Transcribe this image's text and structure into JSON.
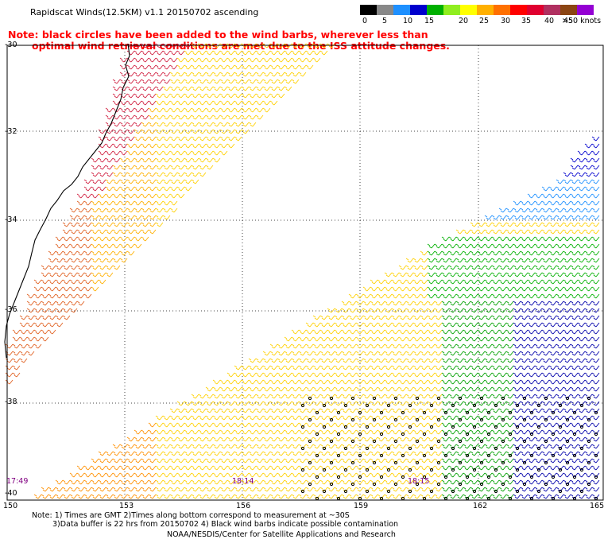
{
  "header": {
    "title": "Rapidscat Winds(12.5KM) v1.1 20150702 ascending",
    "note_line1": "Note: black circles have been added to the wind barbs, wherever less than",
    "note_line2": "optimal wind retrieval conditions are met due to the ISS attitude changes."
  },
  "legend": {
    "labels": [
      "0",
      "5",
      "10",
      "15",
      "20",
      "25",
      "30",
      "35",
      "40",
      "45",
      ">50 knots"
    ],
    "colors": [
      "#000000",
      "#888888",
      "#1e90ff",
      "#0000cd",
      "#00b000",
      "#90ee20",
      "#ffff00",
      "#ffb000",
      "#ff7000",
      "#ff0000",
      "#e00030",
      "#b03060",
      "#8b4513",
      "#9400d3",
      "#ff00ff",
      "#4b0082"
    ]
  },
  "map": {
    "lat_labels": [
      "-30",
      "-32",
      "-34",
      "-36",
      "-38",
      "-40"
    ],
    "lon_labels": [
      "150",
      "153",
      "156",
      "159",
      "162",
      "165"
    ],
    "time_labels": [
      "17:49",
      "18:14",
      "18:15"
    ]
  },
  "footer": {
    "line1": "Note: 1) Times are GMT 2)Times along bottom correspond to measurement at ~30S",
    "line2": "3)Data buffer is 22 hrs from 20150702 4) Black wind barbs indicate possible contamination",
    "line3": "NOAA/NESDIS/Center for Satellite Applications and Research"
  }
}
